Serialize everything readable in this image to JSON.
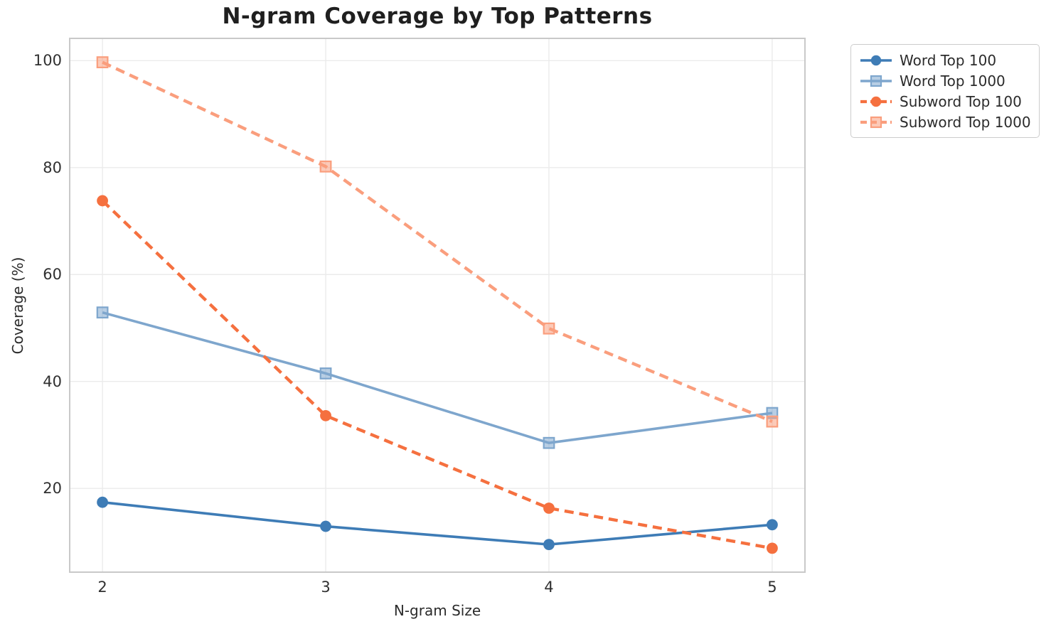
{
  "chart_data": {
    "type": "line",
    "title": "N-gram Coverage by Top Patterns",
    "xlabel": "N-gram Size",
    "ylabel": "Coverage (%)",
    "x": [
      2,
      3,
      4,
      5
    ],
    "series": [
      {
        "name": "Word Top 100",
        "values": [
          17.4,
          12.9,
          9.5,
          13.2
        ],
        "color": "#3e7cb6",
        "line_style": "solid",
        "marker": "circle"
      },
      {
        "name": "Word Top 1000",
        "values": [
          52.9,
          41.5,
          28.5,
          34.1
        ],
        "color": "#7ea6cd",
        "line_style": "solid",
        "marker": "square"
      },
      {
        "name": "Subword Top 100",
        "values": [
          73.8,
          33.6,
          16.3,
          8.8
        ],
        "color": "#f5703f",
        "line_style": "dashed",
        "marker": "circle"
      },
      {
        "name": "Subword Top 1000",
        "values": [
          99.7,
          80.2,
          49.9,
          32.5
        ],
        "color": "#fa9e7d",
        "line_style": "dashed",
        "marker": "square"
      }
    ],
    "xticks": [
      2,
      3,
      4,
      5
    ],
    "yticks": [
      20,
      40,
      60,
      80,
      100
    ],
    "xlim": [
      1.85,
      5.15
    ],
    "ylim": [
      4.2,
      104.3
    ],
    "grid": true,
    "legend_position": "outside-top-right"
  },
  "colors": {
    "background": "#ffffff",
    "grid": "#ebebeb",
    "spine": "#c9c9c9",
    "tick_label": "#303030",
    "title": "#1f1f1f"
  }
}
